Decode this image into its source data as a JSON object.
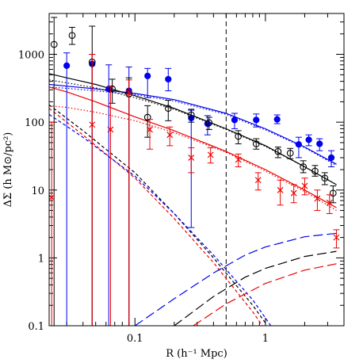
{
  "chart_data": {
    "type": "scatter",
    "title": "",
    "xlabel": "R (h⁻¹ Mpc)",
    "ylabel": "ΔΣ (h M⊙/pc²)",
    "xscale": "log",
    "yscale": "log",
    "xlim": [
      0.022,
      4.0
    ],
    "ylim": [
      0.1,
      4000
    ],
    "x_ticks": [
      {
        "value": 0.1,
        "label": "0.1"
      },
      {
        "value": 1,
        "label": "1"
      }
    ],
    "y_ticks": [
      {
        "value": 0.1,
        "label": "0.1"
      },
      {
        "value": 1,
        "label": "1"
      },
      {
        "value": 10,
        "label": "10"
      },
      {
        "value": 100,
        "label": "100"
      },
      {
        "value": 1000,
        "label": "1000"
      }
    ],
    "vline": {
      "x": 0.5,
      "style": "dashed",
      "color": "#000000"
    },
    "series": [
      {
        "kind": "points",
        "marker": "filled-circle",
        "color": "#0000ee",
        "points": [
          {
            "x": 0.03,
            "y": 680,
            "lo": 0.1,
            "hi": 1050
          },
          {
            "x": 0.047,
            "y": 720,
            "lo": 0.1,
            "hi": 1000
          },
          {
            "x": 0.063,
            "y": 310,
            "lo": 0.1,
            "hi": 700
          },
          {
            "x": 0.09,
            "y": 290,
            "lo": 0.1,
            "hi": 650
          },
          {
            "x": 0.125,
            "y": 480,
            "lo": 230,
            "hi": 620
          },
          {
            "x": 0.18,
            "y": 430,
            "lo": 290,
            "hi": 620
          },
          {
            "x": 0.27,
            "y": 115,
            "lo": 2.8,
            "hi": 150
          },
          {
            "x": 0.36,
            "y": 95,
            "lo": 65,
            "hi": 125
          },
          {
            "x": 0.58,
            "y": 108,
            "lo": 80,
            "hi": 135
          },
          {
            "x": 0.85,
            "y": 108,
            "lo": 85,
            "hi": 132
          },
          {
            "x": 1.23,
            "y": 110,
            "lo": 95,
            "hi": 128
          },
          {
            "x": 1.8,
            "y": 47,
            "lo": 30,
            "hi": 60
          },
          {
            "x": 2.15,
            "y": 55,
            "lo": 45,
            "hi": 65
          },
          {
            "x": 2.6,
            "y": 48,
            "lo": 38,
            "hi": 57
          },
          {
            "x": 3.2,
            "y": 30,
            "lo": 22,
            "hi": 38
          }
        ]
      },
      {
        "kind": "points",
        "marker": "open-circle",
        "color": "#000000",
        "points": [
          {
            "x": 0.024,
            "y": 1400,
            "lo": 0.1,
            "hi": 3500
          },
          {
            "x": 0.033,
            "y": 1900,
            "lo": 1400,
            "hi": 2500
          },
          {
            "x": 0.047,
            "y": 770,
            "lo": 0.1,
            "hi": 2600
          },
          {
            "x": 0.067,
            "y": 310,
            "lo": 190,
            "hi": 430
          },
          {
            "x": 0.09,
            "y": 260,
            "lo": 0.1,
            "hi": 450
          },
          {
            "x": 0.125,
            "y": 118,
            "lo": 60,
            "hi": 175
          },
          {
            "x": 0.18,
            "y": 160,
            "lo": 105,
            "hi": 210
          },
          {
            "x": 0.27,
            "y": 128,
            "lo": 100,
            "hi": 155
          },
          {
            "x": 0.37,
            "y": 98,
            "lo": 78,
            "hi": 118
          },
          {
            "x": 0.62,
            "y": 62,
            "lo": 48,
            "hi": 75
          },
          {
            "x": 0.85,
            "y": 48,
            "lo": 40,
            "hi": 57
          },
          {
            "x": 1.25,
            "y": 37,
            "lo": 30,
            "hi": 43
          },
          {
            "x": 1.55,
            "y": 35,
            "lo": 29,
            "hi": 41
          },
          {
            "x": 1.95,
            "y": 22,
            "lo": 18,
            "hi": 27
          },
          {
            "x": 2.4,
            "y": 19,
            "lo": 16,
            "hi": 23
          },
          {
            "x": 2.85,
            "y": 15,
            "lo": 12,
            "hi": 18
          },
          {
            "x": 3.3,
            "y": 9,
            "lo": 6.5,
            "hi": 11.5
          }
        ]
      },
      {
        "kind": "points",
        "marker": "cross",
        "color": "#ee0000",
        "points": [
          {
            "x": 0.023,
            "y": 7.8,
            "lo": 0.1,
            "hi": 100
          },
          {
            "x": 0.047,
            "y": 92,
            "lo": 0.1,
            "hi": 1000
          },
          {
            "x": 0.065,
            "y": 78,
            "lo": 0.1,
            "hi": 330
          },
          {
            "x": 0.09,
            "y": 270,
            "lo": 0.1,
            "hi": 420
          },
          {
            "x": 0.13,
            "y": 78,
            "lo": 40,
            "hi": 110
          },
          {
            "x": 0.185,
            "y": 65,
            "lo": 45,
            "hi": 85
          },
          {
            "x": 0.27,
            "y": 30,
            "lo": 18,
            "hi": 42
          },
          {
            "x": 0.38,
            "y": 33,
            "lo": 25,
            "hi": 42
          },
          {
            "x": 0.62,
            "y": 28,
            "lo": 22,
            "hi": 34
          },
          {
            "x": 0.88,
            "y": 14,
            "lo": 10,
            "hi": 18
          },
          {
            "x": 1.3,
            "y": 10,
            "lo": 6,
            "hi": 14
          },
          {
            "x": 1.65,
            "y": 9,
            "lo": 6.5,
            "hi": 12
          },
          {
            "x": 2.0,
            "y": 11.5,
            "lo": 8.5,
            "hi": 15
          },
          {
            "x": 2.5,
            "y": 7.5,
            "lo": 5,
            "hi": 10
          },
          {
            "x": 3.1,
            "y": 6.5,
            "lo": 4.5,
            "hi": 8.5
          },
          {
            "x": 3.5,
            "y": 2,
            "lo": 1.4,
            "hi": 2.6
          }
        ]
      },
      {
        "kind": "line",
        "style": "solid",
        "color": "#0000ee",
        "points": [
          [
            0.022,
            360
          ],
          [
            0.03,
            340
          ],
          [
            0.05,
            310
          ],
          [
            0.1,
            265
          ],
          [
            0.2,
            215
          ],
          [
            0.5,
            135
          ],
          [
            1.0,
            80
          ],
          [
            2.0,
            43
          ],
          [
            3.5,
            24
          ]
        ]
      },
      {
        "kind": "line",
        "style": "dotted",
        "color": "#0000ee",
        "points": [
          [
            0.022,
            330
          ],
          [
            0.03,
            315
          ],
          [
            0.05,
            290
          ],
          [
            0.1,
            255
          ],
          [
            0.2,
            205
          ],
          [
            0.5,
            130
          ],
          [
            1.0,
            77
          ],
          [
            2.0,
            42
          ],
          [
            3.5,
            23
          ]
        ]
      },
      {
        "kind": "line",
        "style": "solid",
        "color": "#000000",
        "points": [
          [
            0.022,
            520
          ],
          [
            0.03,
            450
          ],
          [
            0.05,
            360
          ],
          [
            0.1,
            245
          ],
          [
            0.2,
            160
          ],
          [
            0.5,
            80
          ],
          [
            1.0,
            45
          ],
          [
            2.0,
            22
          ],
          [
            3.5,
            12
          ]
        ]
      },
      {
        "kind": "line",
        "style": "dotted",
        "color": "#000000",
        "points": [
          [
            0.022,
            420
          ],
          [
            0.03,
            380
          ],
          [
            0.05,
            320
          ],
          [
            0.1,
            230
          ],
          [
            0.2,
            155
          ],
          [
            0.5,
            78
          ],
          [
            1.0,
            44
          ],
          [
            2.0,
            22
          ],
          [
            3.5,
            12
          ]
        ]
      },
      {
        "kind": "line",
        "style": "solid",
        "color": "#ee0000",
        "points": [
          [
            0.022,
            330
          ],
          [
            0.03,
            280
          ],
          [
            0.05,
            200
          ],
          [
            0.1,
            120
          ],
          [
            0.2,
            75
          ],
          [
            0.5,
            37
          ],
          [
            1.0,
            20
          ],
          [
            2.0,
            10
          ],
          [
            3.5,
            5.5
          ]
        ]
      },
      {
        "kind": "line",
        "style": "dotted",
        "color": "#ee0000",
        "points": [
          [
            0.022,
            175
          ],
          [
            0.03,
            165
          ],
          [
            0.05,
            140
          ],
          [
            0.1,
            105
          ],
          [
            0.2,
            70
          ],
          [
            0.5,
            36
          ],
          [
            1.0,
            19
          ],
          [
            2.0,
            9.5
          ],
          [
            3.5,
            5.0
          ]
        ]
      },
      {
        "kind": "line",
        "style": "short-dashed",
        "color": "#000000",
        "points": [
          [
            0.022,
            180
          ],
          [
            0.04,
            75
          ],
          [
            0.1,
            18
          ],
          [
            0.2,
            4.5
          ],
          [
            0.4,
            1.0
          ],
          [
            0.8,
            0.2
          ],
          [
            1.0,
            0.11
          ]
        ]
      },
      {
        "kind": "line",
        "style": "short-dashed",
        "color": "#ee0000",
        "points": [
          [
            0.022,
            160
          ],
          [
            0.04,
            65
          ],
          [
            0.1,
            15
          ],
          [
            0.2,
            3.8
          ],
          [
            0.4,
            0.85
          ],
          [
            0.8,
            0.16
          ],
          [
            0.95,
            0.1
          ]
        ]
      },
      {
        "kind": "line",
        "style": "short-dashed",
        "color": "#0000ee",
        "points": [
          [
            0.022,
            130
          ],
          [
            0.04,
            60
          ],
          [
            0.1,
            16
          ],
          [
            0.2,
            4.5
          ],
          [
            0.4,
            1.1
          ],
          [
            0.8,
            0.24
          ],
          [
            1.1,
            0.1
          ]
        ]
      },
      {
        "kind": "line",
        "style": "long-dashed",
        "color": "#0000ee",
        "points": [
          [
            0.1,
            0.1
          ],
          [
            0.2,
            0.25
          ],
          [
            0.4,
            0.6
          ],
          [
            0.7,
            1.1
          ],
          [
            1.0,
            1.45
          ],
          [
            2.0,
            2.05
          ],
          [
            3.5,
            2.3
          ]
        ]
      },
      {
        "kind": "line",
        "style": "long-dashed",
        "color": "#000000",
        "points": [
          [
            0.2,
            0.1
          ],
          [
            0.4,
            0.27
          ],
          [
            0.7,
            0.52
          ],
          [
            1.0,
            0.7
          ],
          [
            2.0,
            1.05
          ],
          [
            3.5,
            1.25
          ]
        ]
      },
      {
        "kind": "line",
        "style": "long-dashed",
        "color": "#ee0000",
        "points": [
          [
            0.28,
            0.1
          ],
          [
            0.5,
            0.21
          ],
          [
            1.0,
            0.42
          ],
          [
            2.0,
            0.66
          ],
          [
            3.5,
            0.82
          ]
        ]
      }
    ]
  }
}
